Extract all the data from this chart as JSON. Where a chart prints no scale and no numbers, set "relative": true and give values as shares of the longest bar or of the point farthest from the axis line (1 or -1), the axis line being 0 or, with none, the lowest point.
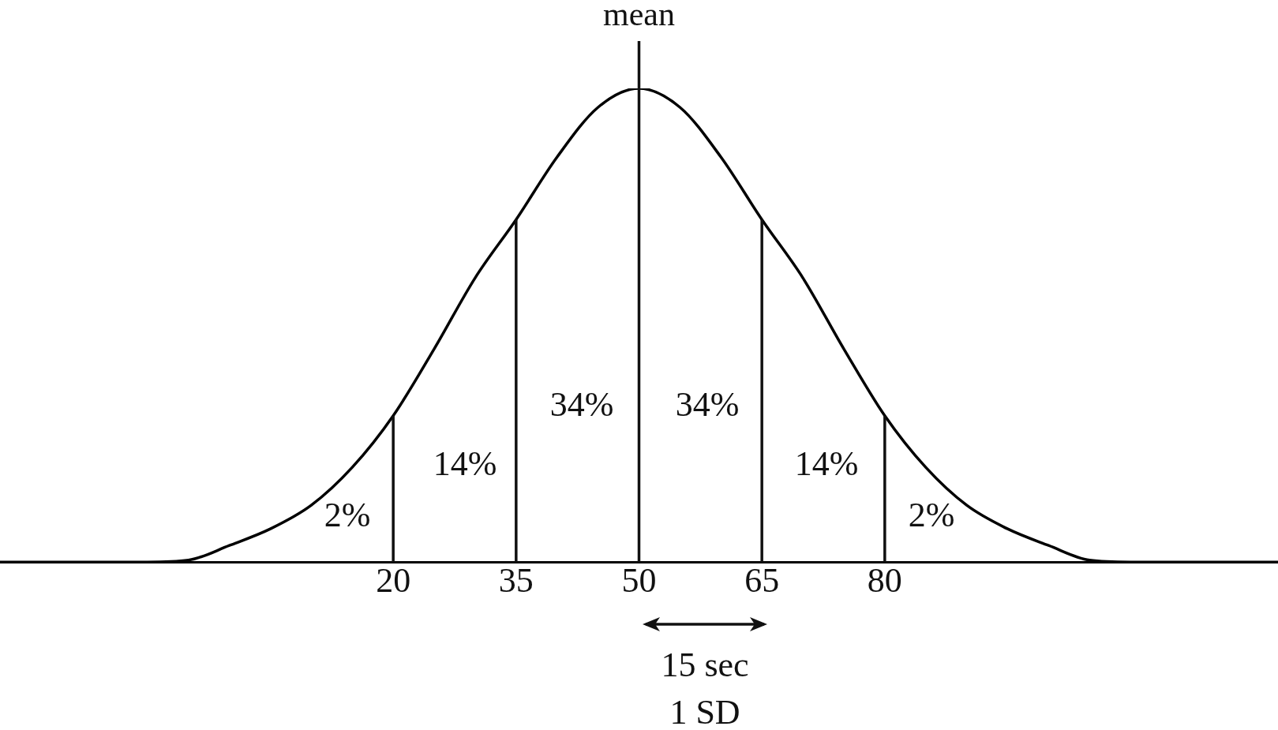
{
  "chart_data": {
    "type": "line",
    "relative": true,
    "series": [
      {
        "color": "#000000",
        "x": [
          -28,
          -10,
          -5,
          0,
          5,
          10,
          15,
          20,
          25,
          30,
          35,
          40,
          45,
          50,
          55,
          60,
          65,
          70,
          75,
          80,
          85,
          90,
          95,
          100,
          105,
          110,
          128
        ],
        "values": [
          0,
          0,
          0.004,
          0.035,
          0.07,
          0.12,
          0.2,
          0.309,
          0.45,
          0.6,
          0.723,
          0.855,
          0.96,
          1,
          0.96,
          0.855,
          0.723,
          0.6,
          0.45,
          0.309,
          0.2,
          0.12,
          0.07,
          0.035,
          0.004,
          0,
          0
        ]
      }
    ],
    "xlim": [
      -28,
      128
    ],
    "xticks": [
      20,
      35,
      50,
      65,
      80
    ],
    "ref_lines": [
      {
        "axis": "x",
        "value": 20
      },
      {
        "axis": "x",
        "value": 35
      },
      {
        "axis": "x",
        "value": 50,
        "label": "mean"
      },
      {
        "axis": "x",
        "value": 65
      },
      {
        "axis": "x",
        "value": 80
      }
    ],
    "annotations": [
      "2%",
      "14%",
      "34%",
      "34%",
      "14%",
      "2%",
      "15 sec",
      "1 SD"
    ],
    "grid": false,
    "legend": false,
    "marker": "none",
    "line_style": "solid"
  }
}
